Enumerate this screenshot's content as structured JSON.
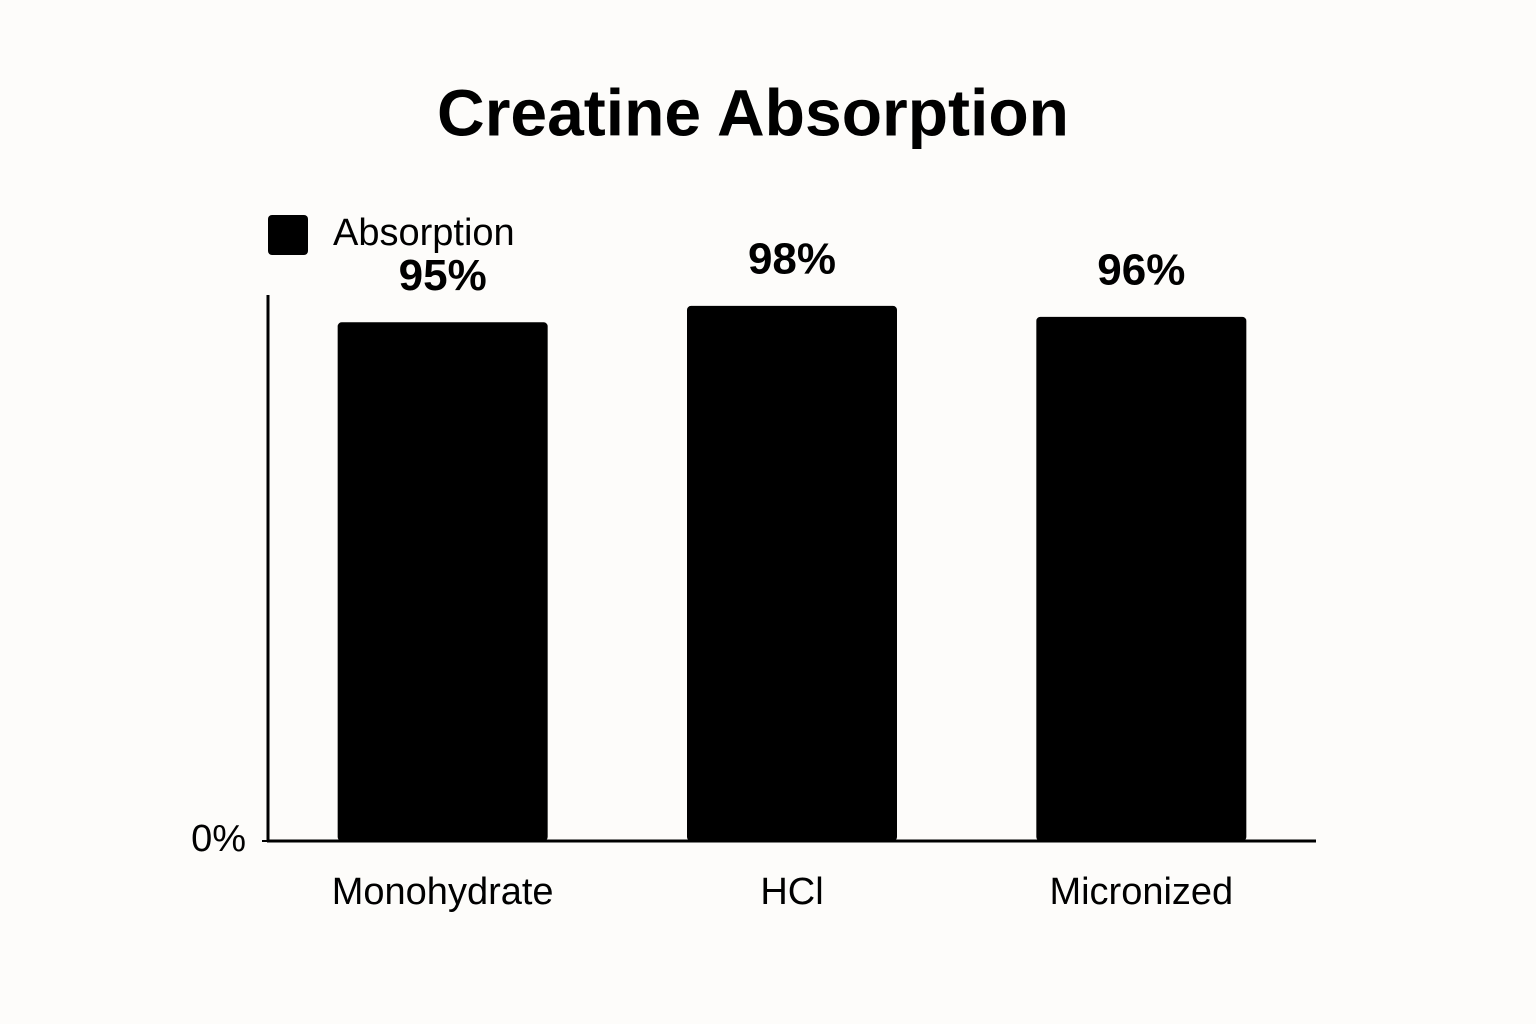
{
  "chart_data": {
    "type": "bar",
    "title": "Creatine Absorption",
    "categories": [
      "Monohydrate",
      "HCl",
      "Micronized"
    ],
    "series": [
      {
        "name": "Absorption",
        "color": "#000000",
        "values": [
          95,
          98,
          96
        ],
        "value_labels": [
          "95%",
          "98%",
          "96%"
        ]
      }
    ],
    "ylim": [
      0,
      100
    ],
    "yticks": [
      {
        "value": 0,
        "label": "0%"
      }
    ],
    "grid": false,
    "legend": "top-left"
  }
}
